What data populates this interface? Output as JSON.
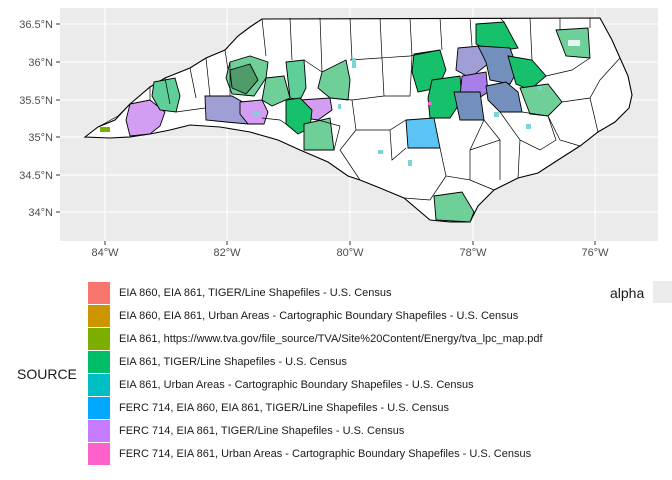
{
  "map": {
    "background": "#ebebeb",
    "grid_color": "#ffffff",
    "county_fill_default": "#ffffff",
    "border_color": "#000000",
    "lat_ticks": [
      "36.5°N",
      "36°N",
      "35.5°N",
      "35°N",
      "34.5°N",
      "34°N"
    ],
    "lon_ticks": [
      "84°W",
      "82°W",
      "80°W",
      "78°W",
      "76°W"
    ]
  },
  "legend": {
    "title": "SOURCE",
    "items": [
      {
        "label": "EIA 860, EIA 861, TIGER/Line Shapefiles - U.S. Census",
        "color": "#f8766d"
      },
      {
        "label": "EIA 860, EIA 861, Urban Areas - Cartographic Boundary Shapefiles - U.S. Census",
        "color": "#cd9600"
      },
      {
        "label": "EIA 861, https://www.tva.gov/file_source/TVA/Site%20Content/Energy/tva_lpc_map.pdf",
        "color": "#7cae00"
      },
      {
        "label": "EIA 861, TIGER/Line Shapefiles - U.S. Census",
        "color": "#00be67"
      },
      {
        "label": "EIA 861, Urban Areas - Cartographic Boundary Shapefiles - U.S. Census",
        "color": "#00bfc4"
      },
      {
        "label": "FERC 714, EIA 860, EIA 861, TIGER/Line Shapefiles - U.S. Census",
        "color": "#00a9ff"
      },
      {
        "label": "FERC 714, EIA 861, TIGER/Line Shapefiles - U.S. Census",
        "color": "#c77cff"
      },
      {
        "label": "FERC 714, EIA 861, Urban Areas - Cartographic Boundary Shapefiles - U.S. Census",
        "color": "#ff61cc"
      }
    ],
    "alpha_title": "alpha"
  }
}
